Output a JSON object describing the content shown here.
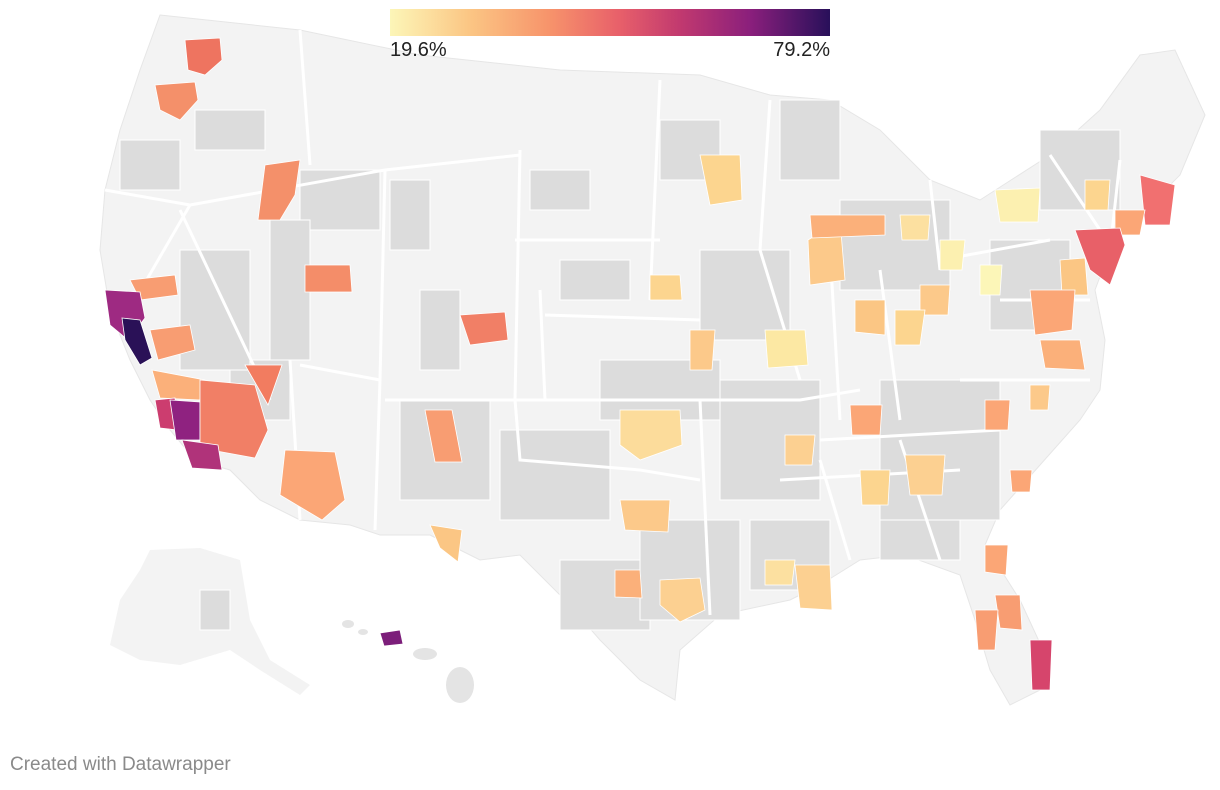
{
  "legend": {
    "min_label": "19.6%",
    "max_label": "79.2%",
    "color_scale": [
      "#fcf6b8",
      "#fbc684",
      "#f7946b",
      "#e8606a",
      "#c1396f",
      "#8a1f7c",
      "#28105a"
    ]
  },
  "footer": {
    "credit": "Created with Datawrapper"
  },
  "colors": {
    "background_land": "#f3f3f3",
    "county_no_data": "#dcdcdc",
    "state_border": "#ffffff"
  }
}
